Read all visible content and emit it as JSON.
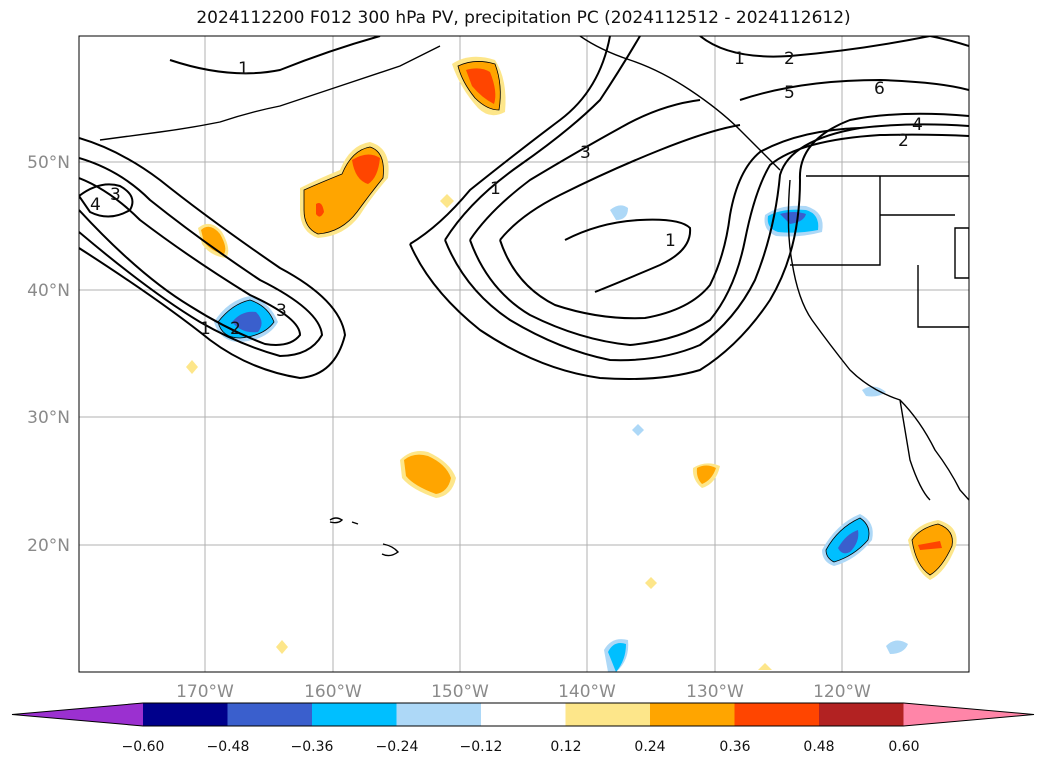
{
  "title": "2024112200 F012 300 hPa PV, precipitation PC (2024112512 - 2024112612)",
  "lat_ticks": [
    "50°N",
    "40°N",
    "30°N",
    "20°N"
  ],
  "lon_ticks": [
    "170°W",
    "160°W",
    "150°W",
    "140°W",
    "130°W",
    "120°W"
  ],
  "colorbar": {
    "labels": [
      "−0.60",
      "−0.48",
      "−0.36",
      "−0.24",
      "−0.12",
      "0.12",
      "0.24",
      "0.36",
      "0.48",
      "0.60"
    ],
    "colors": [
      "#9b30d0",
      "#00008b",
      "#3a5fcd",
      "#00bfff",
      "#add8f7",
      "#ffffff",
      "#fde68a",
      "#ffa500",
      "#ff4500",
      "#b22222",
      "#ff85a8"
    ]
  },
  "contour_labels": [
    "1",
    "3",
    "4",
    "1",
    "2",
    "3",
    "1",
    "3",
    "1",
    "2",
    "5",
    "6",
    "4",
    "2",
    "1"
  ],
  "colors": {
    "grid": "#b0b0b0",
    "contour": "#000000",
    "frame": "#000000"
  }
}
